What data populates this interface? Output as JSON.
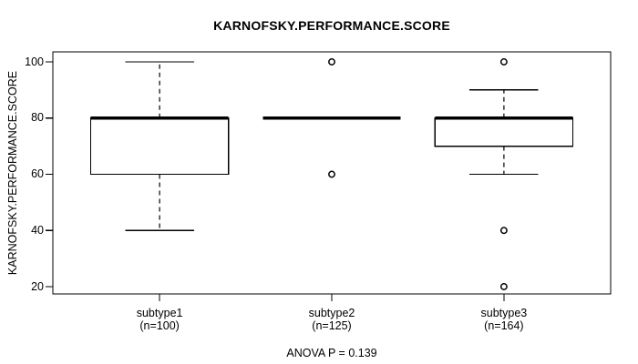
{
  "chart_data": {
    "type": "boxplot",
    "title": "KARNOFSKY.PERFORMANCE.SCORE",
    "ylabel": "KARNOFSKY.PERFORMANCE.SCORE",
    "annotation": "ANOVA P = 0.139",
    "ylim": [
      20,
      100
    ],
    "yticks": [
      100,
      80,
      60,
      40,
      20
    ],
    "grid": false,
    "legend": "none",
    "categories": [
      {
        "label": "subtype1",
        "n": "(n=100)"
      },
      {
        "label": "subtype2",
        "n": "(n=125)"
      },
      {
        "label": "subtype3",
        "n": "(n=164)"
      }
    ],
    "series": [
      {
        "name": "subtype1",
        "whisker_low": 40,
        "q1": 60,
        "median": 80,
        "q3": 80,
        "whisker_high": 100,
        "outliers": []
      },
      {
        "name": "subtype2",
        "whisker_low": 80,
        "q1": 80,
        "median": 80,
        "q3": 80,
        "whisker_high": 80,
        "outliers": [
          100,
          60
        ]
      },
      {
        "name": "subtype3",
        "whisker_low": 60,
        "q1": 70,
        "median": 80,
        "q3": 80,
        "whisker_high": 90,
        "outliers": [
          100,
          40,
          20
        ]
      }
    ],
    "colors": {
      "line": "#000000",
      "box_fill": "#ffffff",
      "background": "#ffffff"
    }
  }
}
